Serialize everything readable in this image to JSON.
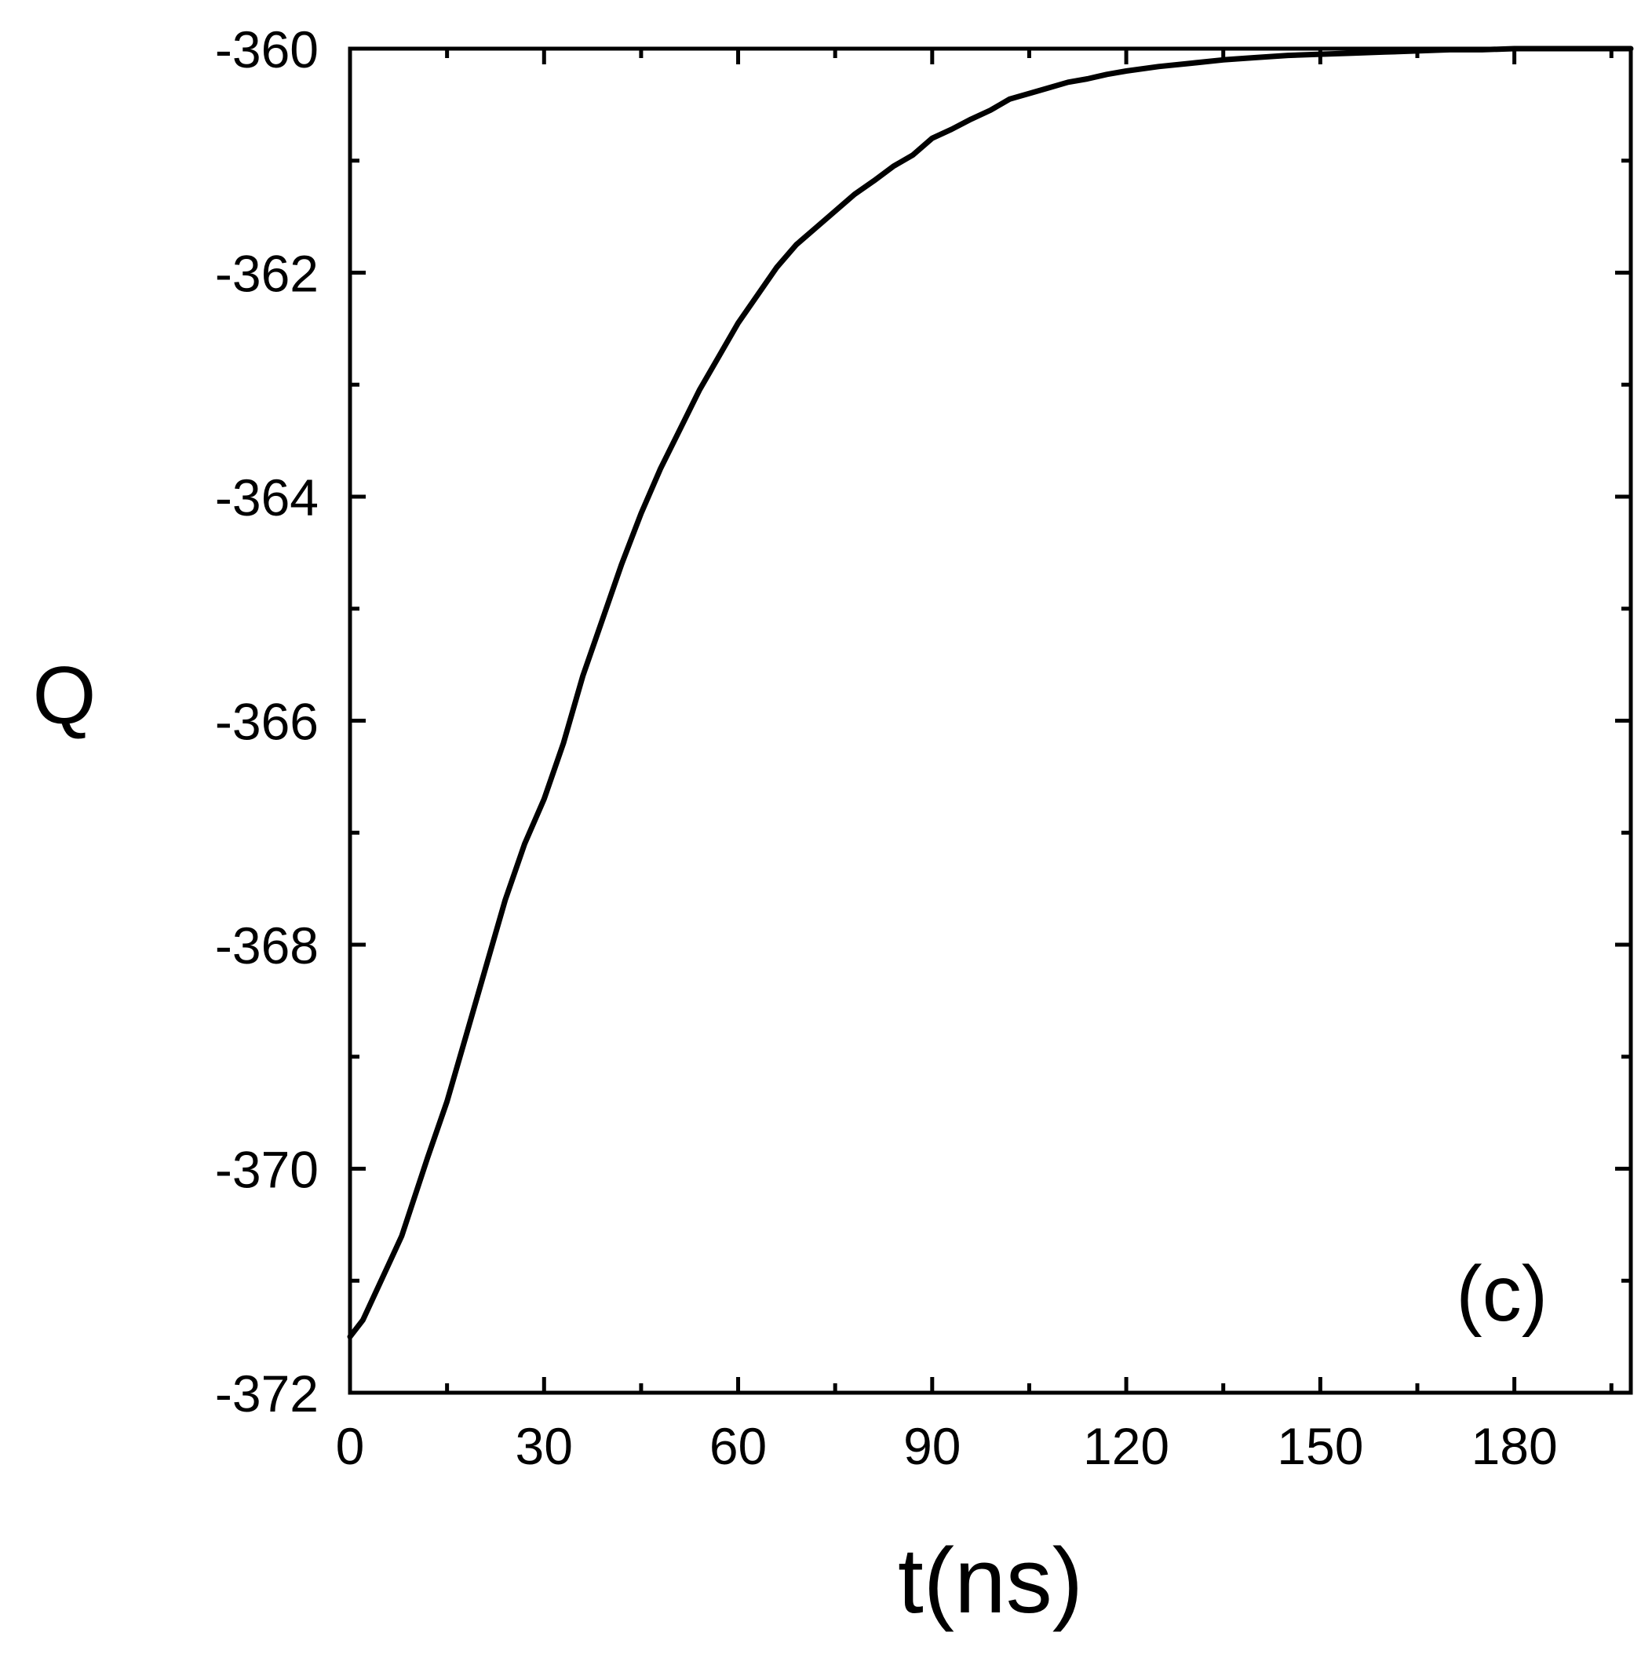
{
  "chart_data": {
    "type": "line",
    "title": "",
    "xlabel": "t(ns)",
    "ylabel": "Q",
    "panel_label": "(c)",
    "xlim": [
      0,
      198
    ],
    "ylim": [
      -372,
      -360
    ],
    "x_ticks": [
      0,
      30,
      60,
      90,
      120,
      150,
      180
    ],
    "x_tick_labels": [
      "0",
      "30",
      "60",
      "90",
      "120",
      "150",
      "180"
    ],
    "x_minor_ticks": [
      15,
      45,
      75,
      105,
      135,
      165,
      195
    ],
    "y_ticks": [
      -372,
      -370,
      -368,
      -366,
      -364,
      -362,
      -360
    ],
    "y_tick_labels": [
      "-372",
      "-370",
      "-368",
      "-366",
      "-364",
      "-362",
      "-360"
    ],
    "y_minor_ticks": [
      -371,
      -369,
      -367,
      -365,
      -363,
      -361
    ],
    "grid": false,
    "line_color": "#000000",
    "series": [
      {
        "x": [
          0,
          2,
          4,
          6,
          8,
          10,
          12,
          15,
          18,
          21,
          24,
          27,
          30,
          33,
          36,
          39,
          42,
          45,
          48,
          51,
          54,
          57,
          60,
          63,
          66,
          69,
          72,
          75,
          78,
          81,
          84,
          87,
          90,
          93,
          96,
          99,
          102,
          105,
          108,
          111,
          114,
          117,
          120,
          125,
          130,
          135,
          140,
          145,
          150,
          155,
          160,
          165,
          170,
          175,
          180,
          185,
          190,
          195,
          198
        ],
        "y": [
          -371.5,
          -371.35,
          -371.1,
          -370.85,
          -370.6,
          -370.25,
          -369.9,
          -369.4,
          -368.8,
          -368.2,
          -367.6,
          -367.1,
          -366.7,
          -366.2,
          -365.6,
          -365.1,
          -364.6,
          -364.15,
          -363.75,
          -363.4,
          -363.05,
          -362.75,
          -362.45,
          -362.2,
          -361.95,
          -361.75,
          -361.6,
          -361.45,
          -361.3,
          -361.18,
          -361.05,
          -360.95,
          -360.8,
          -360.72,
          -360.63,
          -360.55,
          -360.45,
          -360.4,
          -360.35,
          -360.3,
          -360.27,
          -360.23,
          -360.2,
          -360.16,
          -360.13,
          -360.1,
          -360.08,
          -360.06,
          -360.05,
          -360.04,
          -360.03,
          -360.02,
          -360.01,
          -360.01,
          -360.0,
          -360.0,
          -360.0,
          -360.0,
          -360.0
        ]
      }
    ]
  }
}
